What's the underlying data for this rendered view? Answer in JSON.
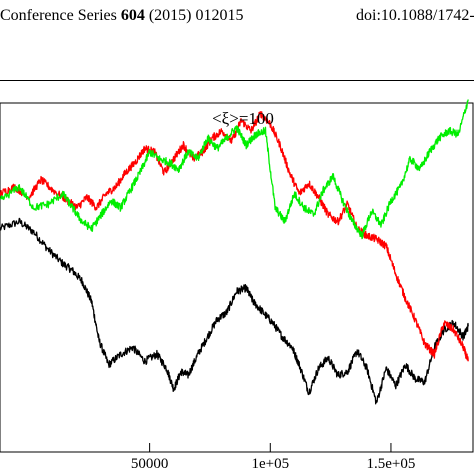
{
  "header": {
    "journal_prefix": "Conference Series ",
    "volume": "604",
    "year_page": " (2015) 012015",
    "doi": "doi:10.1088/1742-"
  },
  "chart_data": {
    "type": "line",
    "annotation": "<ξ>=100",
    "xlabel": "",
    "ylabel": "",
    "xlim": [
      -12000,
      184000
    ],
    "ylim": [
      0,
      100
    ],
    "x_ticks": [
      {
        "value": 50000,
        "label": "50000"
      },
      {
        "value": 100000,
        "label": "1e+05"
      },
      {
        "value": 150000,
        "label": "1.5e+05"
      }
    ],
    "grid": false,
    "legend": "none",
    "series": [
      {
        "color": "#000000",
        "x": [
          -12000,
          -4000,
          2000,
          8000,
          14000,
          18000,
          22000,
          26000,
          29000,
          33000,
          38000,
          43000,
          48000,
          53000,
          57000,
          60000,
          63000,
          66000,
          70000,
          74000,
          78000,
          82000,
          86000,
          90000,
          93000,
          97000,
          101000,
          105000,
          109000,
          112000,
          116000,
          120000,
          124000,
          128000,
          132000,
          136000,
          140000,
          144000,
          148000,
          152000,
          156000,
          160000,
          164000,
          168000,
          172000,
          176000,
          180000,
          182000
        ],
        "y": [
          64,
          66,
          63,
          58,
          54,
          52,
          49,
          43,
          32,
          25,
          28,
          30,
          26,
          28,
          24,
          18,
          23,
          22,
          28,
          33,
          38,
          40,
          46,
          47,
          43,
          40,
          37,
          33,
          30,
          25,
          17,
          24,
          27,
          22,
          23,
          29,
          24,
          14,
          24,
          19,
          25,
          21,
          20,
          30,
          35,
          37,
          33,
          36
        ]
      },
      {
        "color": "#ff0000",
        "x": [
          -12000,
          -6000,
          0,
          5000,
          10000,
          16000,
          20000,
          24000,
          28000,
          32000,
          36000,
          40000,
          44000,
          48000,
          52000,
          56000,
          60000,
          64000,
          68000,
          72000,
          76000,
          80000,
          84000,
          88000,
          92000,
          96000,
          100000,
          104000,
          108000,
          112000,
          116000,
          120000,
          124000,
          128000,
          132000,
          136000,
          140000,
          144000,
          148000,
          152000,
          156000,
          160000,
          164000,
          168000,
          172000,
          176000,
          180000,
          182000
        ],
        "y": [
          74,
          76,
          73,
          78,
          75,
          72,
          70,
          73,
          70,
          74,
          76,
          80,
          83,
          87,
          86,
          80,
          84,
          88,
          84,
          86,
          90,
          92,
          89,
          95,
          92,
          97,
          94,
          88,
          80,
          74,
          77,
          73,
          68,
          66,
          71,
          64,
          62,
          61,
          59,
          51,
          44,
          38,
          31,
          28,
          37,
          35,
          30,
          26
        ]
      },
      {
        "color": "#00ee00",
        "x": [
          -12000,
          -4000,
          2000,
          8000,
          14000,
          18000,
          22000,
          26000,
          30000,
          34000,
          38000,
          42000,
          46000,
          50000,
          54000,
          58000,
          62000,
          66000,
          70000,
          74000,
          78000,
          82000,
          86000,
          90000,
          94000,
          98000,
          102000,
          106000,
          110000,
          114000,
          118000,
          122000,
          126000,
          130000,
          134000,
          138000,
          142000,
          146000,
          150000,
          154000,
          158000,
          162000,
          166000,
          170000,
          174000,
          178000,
          182000
        ],
        "y": [
          72,
          76,
          70,
          71,
          74,
          70,
          66,
          64,
          68,
          72,
          70,
          75,
          80,
          86,
          84,
          83,
          81,
          86,
          84,
          90,
          87,
          90,
          93,
          88,
          91,
          92,
          70,
          66,
          74,
          70,
          68,
          75,
          79,
          72,
          66,
          62,
          69,
          65,
          72,
          76,
          84,
          81,
          86,
          90,
          92,
          91,
          101
        ]
      }
    ]
  }
}
